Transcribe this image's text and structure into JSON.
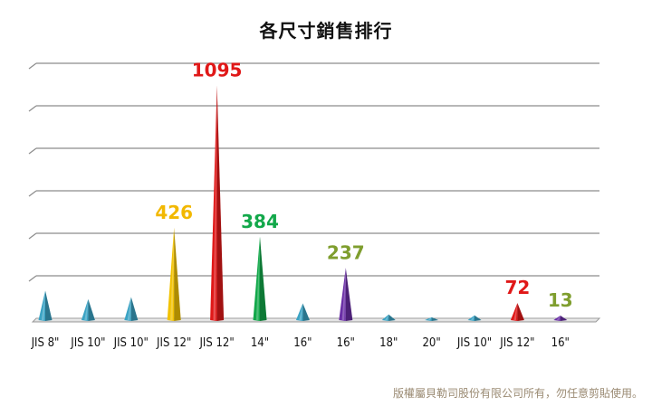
{
  "chart_data": {
    "type": "bar",
    "title": "各尺寸銷售排行",
    "categories": [
      "JIS 8\"",
      "JIS 10\"",
      "JIS 10\"",
      "JIS 12\"",
      "JIS 12\"",
      "14\"",
      "16\"",
      "16\"",
      "18\"",
      "20\"",
      "JIS 10\"",
      "JIS 12\"",
      "16\""
    ],
    "values": [
      130,
      90,
      100,
      426,
      1095,
      384,
      70,
      237,
      18,
      5,
      14,
      72,
      13
    ],
    "data_labels": [
      "",
      "",
      "",
      "426",
      "1095",
      "384",
      "",
      "237",
      "",
      "",
      "",
      "72",
      "13"
    ],
    "colors": [
      "#3ba3c4",
      "#3ba3c4",
      "#3ba3c4",
      "#f2c200",
      "#e01818",
      "#12a84a",
      "#3ba3c4",
      "#6a2ea6",
      "#3ba3c4",
      "#3ba3c4",
      "#3ba3c4",
      "#e01818",
      "#6a2ea6"
    ],
    "label_colors": [
      "#111111",
      "#111111",
      "#111111",
      "#f2b800",
      "#e01818",
      "#12a84a",
      "#111111",
      "#7f9e2e",
      "#111111",
      "#111111",
      "#111111",
      "#e01818",
      "#7f9e2e"
    ],
    "ylim": [
      0,
      1200
    ],
    "gridlines": [
      200,
      400,
      600,
      800,
      1000,
      1200
    ],
    "xlabel": "",
    "ylabel": "",
    "grid": true,
    "legend": "none"
  },
  "footer": {
    "copyright": "版權屬貝勒司股份有限公司所有，勿任意剪貼使用。"
  }
}
